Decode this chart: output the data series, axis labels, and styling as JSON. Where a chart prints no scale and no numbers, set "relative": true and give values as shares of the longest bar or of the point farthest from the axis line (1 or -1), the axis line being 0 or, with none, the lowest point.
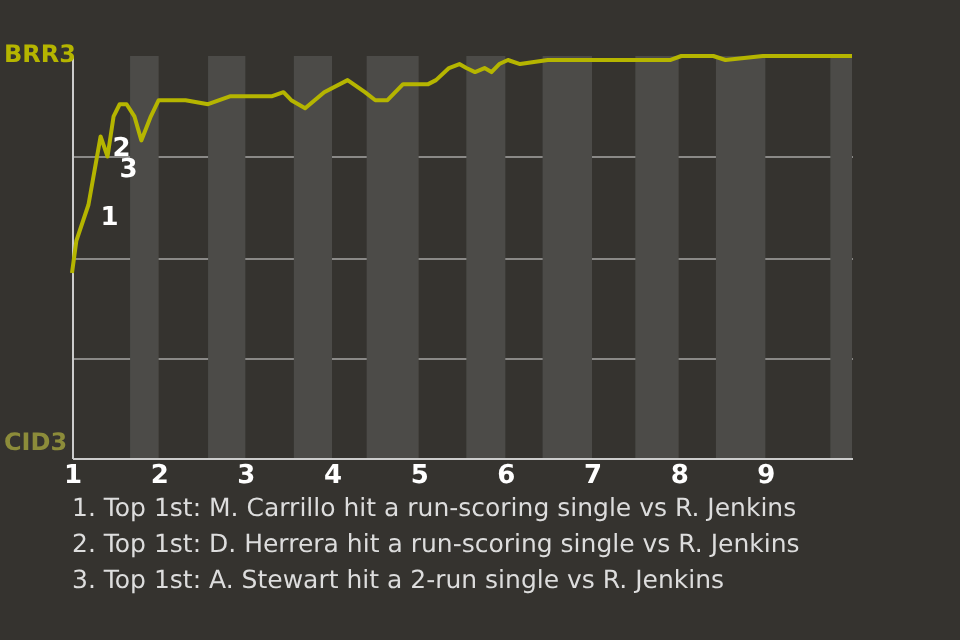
{
  "chart_data": {
    "type": "line",
    "relative": true,
    "x": [
      1,
      1.05,
      1.19,
      1.33,
      1.41,
      1.48,
      1.55,
      1.63,
      1.72,
      1.8,
      1.91,
      2,
      2.31,
      2.57,
      2.83,
      3.09,
      3.31,
      3.44,
      3.53,
      3.69,
      3.91,
      4.18,
      4.38,
      4.5,
      4.64,
      4.82,
      4.98,
      5.11,
      5.2,
      5.35,
      5.47,
      5.55,
      5.65,
      5.76,
      5.84,
      5.93,
      6.03,
      6.17,
      6.49,
      6.74,
      6.97,
      7.48,
      7.65,
      7.9,
      8.03,
      8.4,
      8.54,
      8.97,
      10
    ],
    "series": [
      {
        "color": "#b5b500",
        "values": [
          0.46,
          0.54,
          0.63,
          0.8,
          0.75,
          0.85,
          0.88,
          0.88,
          0.85,
          0.79,
          0.85,
          0.89,
          0.89,
          0.88,
          0.9,
          0.9,
          0.9,
          0.91,
          0.89,
          0.87,
          0.91,
          0.94,
          0.91,
          0.89,
          0.89,
          0.93,
          0.93,
          0.93,
          0.94,
          0.97,
          0.98,
          0.97,
          0.96,
          0.97,
          0.96,
          0.98,
          0.99,
          0.98,
          0.99,
          0.99,
          0.99,
          0.99,
          0.99,
          0.99,
          1,
          1,
          0.99,
          1,
          1
        ]
      }
    ],
    "xlim": [
      1,
      10
    ],
    "xticks": [
      1,
      2,
      3,
      4,
      5,
      6,
      7,
      8,
      9
    ],
    "grid": "y",
    "bands": [
      {
        "axis": "x",
        "from": 1.67,
        "to": 2,
        "color": "#4c4b48"
      },
      {
        "axis": "x",
        "from": 2.57,
        "to": 3,
        "color": "#4c4b48"
      },
      {
        "axis": "x",
        "from": 3.56,
        "to": 4,
        "color": "#4c4b48"
      },
      {
        "axis": "x",
        "from": 4.4,
        "to": 5,
        "color": "#4c4b48"
      },
      {
        "axis": "x",
        "from": 5.55,
        "to": 6,
        "color": "#4c4b48"
      },
      {
        "axis": "x",
        "from": 6.43,
        "to": 7,
        "color": "#4c4b48"
      },
      {
        "axis": "x",
        "from": 7.5,
        "to": 8,
        "color": "#4c4b48"
      },
      {
        "axis": "x",
        "from": 8.43,
        "to": 9,
        "color": "#4c4b48"
      },
      {
        "axis": "x",
        "from": 9.75,
        "to": 10,
        "color": "#4c4b48"
      }
    ],
    "annotations": [
      "BRR3",
      "CID3",
      {
        "text": "1",
        "x": 1.19,
        "y": 0.63
      },
      {
        "text": "2",
        "x": 1.33,
        "y": 0.8
      },
      {
        "text": "3",
        "x": 1.41,
        "y": 0.75
      },
      "1. Top 1st: M. Carrillo hit a run-scoring single vs R. Jenkins",
      "2. Top 1st: D. Herrera hit a run-scoring single vs R. Jenkins",
      "3. Top 1st: A. Stewart hit a 2-run single vs R. Jenkins"
    ]
  }
}
